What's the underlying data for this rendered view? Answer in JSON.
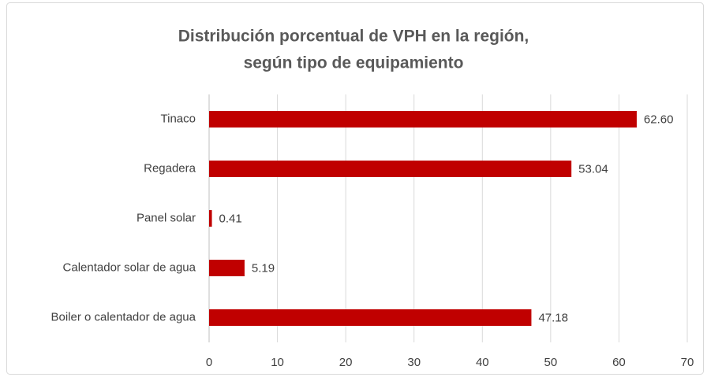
{
  "chart_data": {
    "type": "bar",
    "orientation": "horizontal",
    "title": [
      "Distribución porcentual de VPH en la región,",
      "según tipo de equipamiento"
    ],
    "categories": [
      "Tinaco",
      "Regadera",
      "Panel solar",
      "Calentador solar de agua",
      "Boiler o calentador de agua"
    ],
    "values": [
      62.6,
      53.04,
      0.41,
      5.19,
      47.18
    ],
    "value_labels": [
      "62.60",
      "53.04",
      "0.41",
      "5.19",
      "47.18"
    ],
    "color": "#c00000",
    "xlim": [
      0,
      70
    ],
    "xticks": [
      0,
      10,
      20,
      30,
      40,
      50,
      60,
      70
    ],
    "grid": true
  }
}
